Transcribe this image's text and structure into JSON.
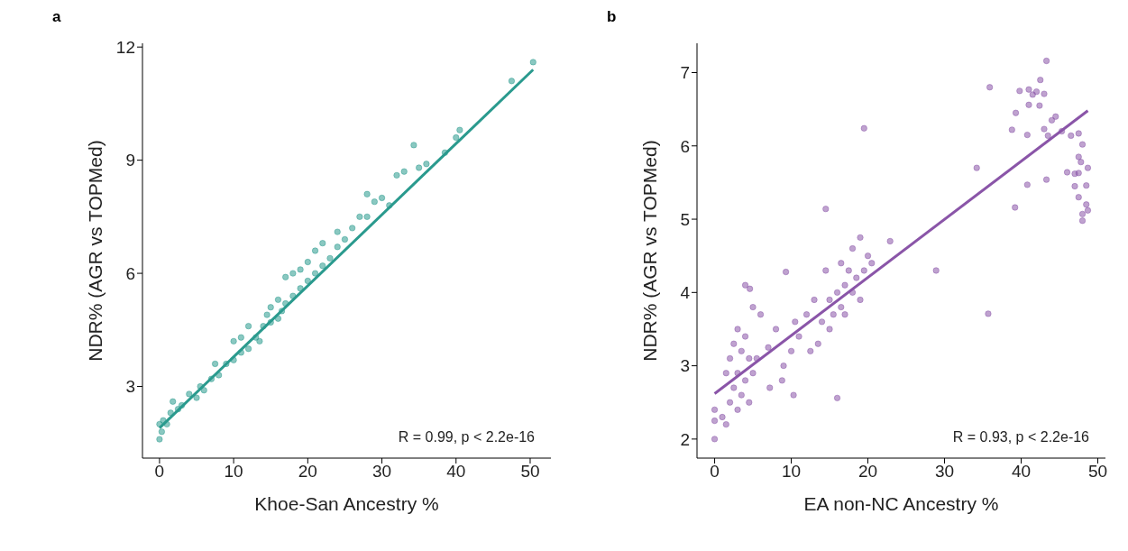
{
  "chart_data": [
    {
      "type": "scatter",
      "title": "a",
      "xlabel": "Khoe-San Ancestry %",
      "ylabel": "NDR% (AGR vs TOPMed)",
      "xlim": [
        -2.3,
        52.8
      ],
      "ylim": [
        1.1,
        12.1
      ],
      "xticks": [
        0,
        10,
        20,
        30,
        40,
        50
      ],
      "yticks": [
        3,
        6,
        9,
        12
      ],
      "grid": false,
      "annotations": [
        "R = 0.99, p < 2.2e-16"
      ],
      "series": [
        {
          "marker": "circle",
          "color": "#2a9a8e",
          "x": [
            0,
            0,
            0.3,
            0.5,
            1,
            1.5,
            1.8,
            2.5,
            3,
            4,
            5,
            5.5,
            6,
            7,
            7.5,
            8,
            9,
            10,
            10,
            11,
            11,
            12,
            12,
            13,
            13.5,
            14,
            14.5,
            15,
            15,
            16,
            16,
            16.5,
            17,
            17,
            18,
            18,
            19,
            19,
            20,
            20,
            21,
            21,
            22,
            22,
            23,
            24,
            24,
            25,
            26,
            27,
            28,
            28,
            29,
            30,
            31,
            32,
            33,
            34.3,
            35,
            36,
            38.5,
            40,
            40.5,
            47.5,
            50.4
          ],
          "values": [
            1.6,
            2.0,
            1.8,
            2.1,
            2.0,
            2.3,
            2.6,
            2.4,
            2.5,
            2.8,
            2.7,
            3.0,
            2.9,
            3.2,
            3.6,
            3.3,
            3.6,
            3.7,
            4.2,
            3.9,
            4.3,
            4.0,
            4.6,
            4.3,
            4.2,
            4.6,
            4.9,
            4.7,
            5.1,
            4.8,
            5.3,
            5.0,
            5.2,
            5.9,
            5.4,
            6.0,
            5.6,
            6.1,
            5.8,
            6.3,
            6.0,
            6.6,
            6.2,
            6.8,
            6.4,
            6.7,
            7.1,
            6.9,
            7.2,
            7.5,
            7.5,
            8.1,
            7.9,
            8.0,
            7.8,
            8.6,
            8.7,
            9.4,
            8.8,
            8.9,
            9.2,
            9.6,
            9.8,
            11.1,
            11.6
          ]
        },
        {
          "type": "line",
          "color": "#2a9a8e",
          "x": [
            0,
            50.4
          ],
          "values": [
            1.9,
            11.4
          ]
        }
      ]
    },
    {
      "type": "scatter",
      "title": "b",
      "xlabel": "EA non-NC Ancestry %",
      "ylabel": "NDR% (AGR vs TOPMed)",
      "xlim": [
        -2.3,
        51
      ],
      "ylim": [
        1.74,
        7.4
      ],
      "xticks": [
        0,
        10,
        20,
        30,
        40,
        50
      ],
      "yticks": [
        2,
        3,
        4,
        5,
        6,
        7
      ],
      "grid": false,
      "annotations": [
        "R = 0.93, p < 2.2e-16"
      ],
      "series": [
        {
          "marker": "circle",
          "color": "#8a55a8",
          "x": [
            0,
            0,
            0,
            1,
            1.5,
            1.5,
            2,
            2,
            2.5,
            2.5,
            3,
            3,
            3,
            3.5,
            3.5,
            4,
            4,
            4.5,
            4.5,
            4,
            4.6,
            5,
            5.5,
            5,
            6,
            7,
            7.2,
            8,
            8.8,
            9,
            9.3,
            10,
            10.3,
            10.5,
            11,
            12,
            12.5,
            13,
            13.5,
            14,
            14.5,
            14.5,
            15,
            15,
            15.5,
            16,
            16,
            16.5,
            16.5,
            17,
            17,
            17.5,
            18,
            18,
            18.5,
            19,
            19,
            19.5,
            19.5,
            20,
            20.5,
            22.9,
            28.9,
            34.2,
            35.7,
            35.9,
            38.8,
            39.2,
            39.3,
            39.8,
            40.8,
            40.8,
            41,
            41,
            41.5,
            42,
            42.5,
            42.4,
            43,
            43,
            43.3,
            43.3,
            43.5,
            44,
            44.5,
            45.3,
            46,
            46.5,
            47,
            47,
            47.5,
            47.5,
            47.5,
            47.5,
            47.8,
            48,
            48,
            48,
            48.5,
            48.5,
            48.7,
            48.7
          ],
          "values": [
            2.0,
            2.25,
            2.4,
            2.3,
            2.2,
            2.9,
            2.5,
            3.1,
            2.7,
            3.3,
            2.4,
            2.9,
            3.5,
            2.6,
            3.2,
            2.8,
            3.4,
            2.5,
            3.1,
            4.1,
            4.05,
            2.9,
            3.1,
            3.8,
            3.7,
            3.25,
            2.7,
            3.5,
            2.8,
            3.0,
            4.28,
            3.2,
            2.6,
            3.6,
            3.4,
            3.7,
            3.2,
            3.9,
            3.3,
            3.6,
            4.3,
            5.14,
            3.5,
            3.9,
            3.7,
            4.0,
            2.56,
            3.8,
            4.4,
            4.1,
            3.7,
            4.3,
            4.0,
            4.6,
            4.2,
            3.9,
            4.75,
            4.3,
            6.24,
            4.5,
            4.4,
            4.7,
            4.3,
            5.7,
            3.71,
            6.8,
            6.22,
            5.16,
            6.45,
            6.75,
            6.15,
            5.47,
            6.77,
            6.56,
            6.7,
            6.74,
            6.9,
            6.55,
            6.71,
            6.23,
            5.54,
            7.16,
            6.14,
            6.35,
            6.4,
            6.2,
            5.64,
            6.14,
            5.45,
            5.62,
            6.17,
            5.3,
            5.85,
            5.63,
            5.78,
            6.02,
            4.98,
            5.07,
            5.46,
            5.2,
            5.7,
            5.12
          ]
        },
        {
          "type": "line",
          "color": "#8a55a8",
          "x": [
            0,
            48.7
          ],
          "values": [
            2.62,
            6.48
          ]
        }
      ]
    }
  ]
}
